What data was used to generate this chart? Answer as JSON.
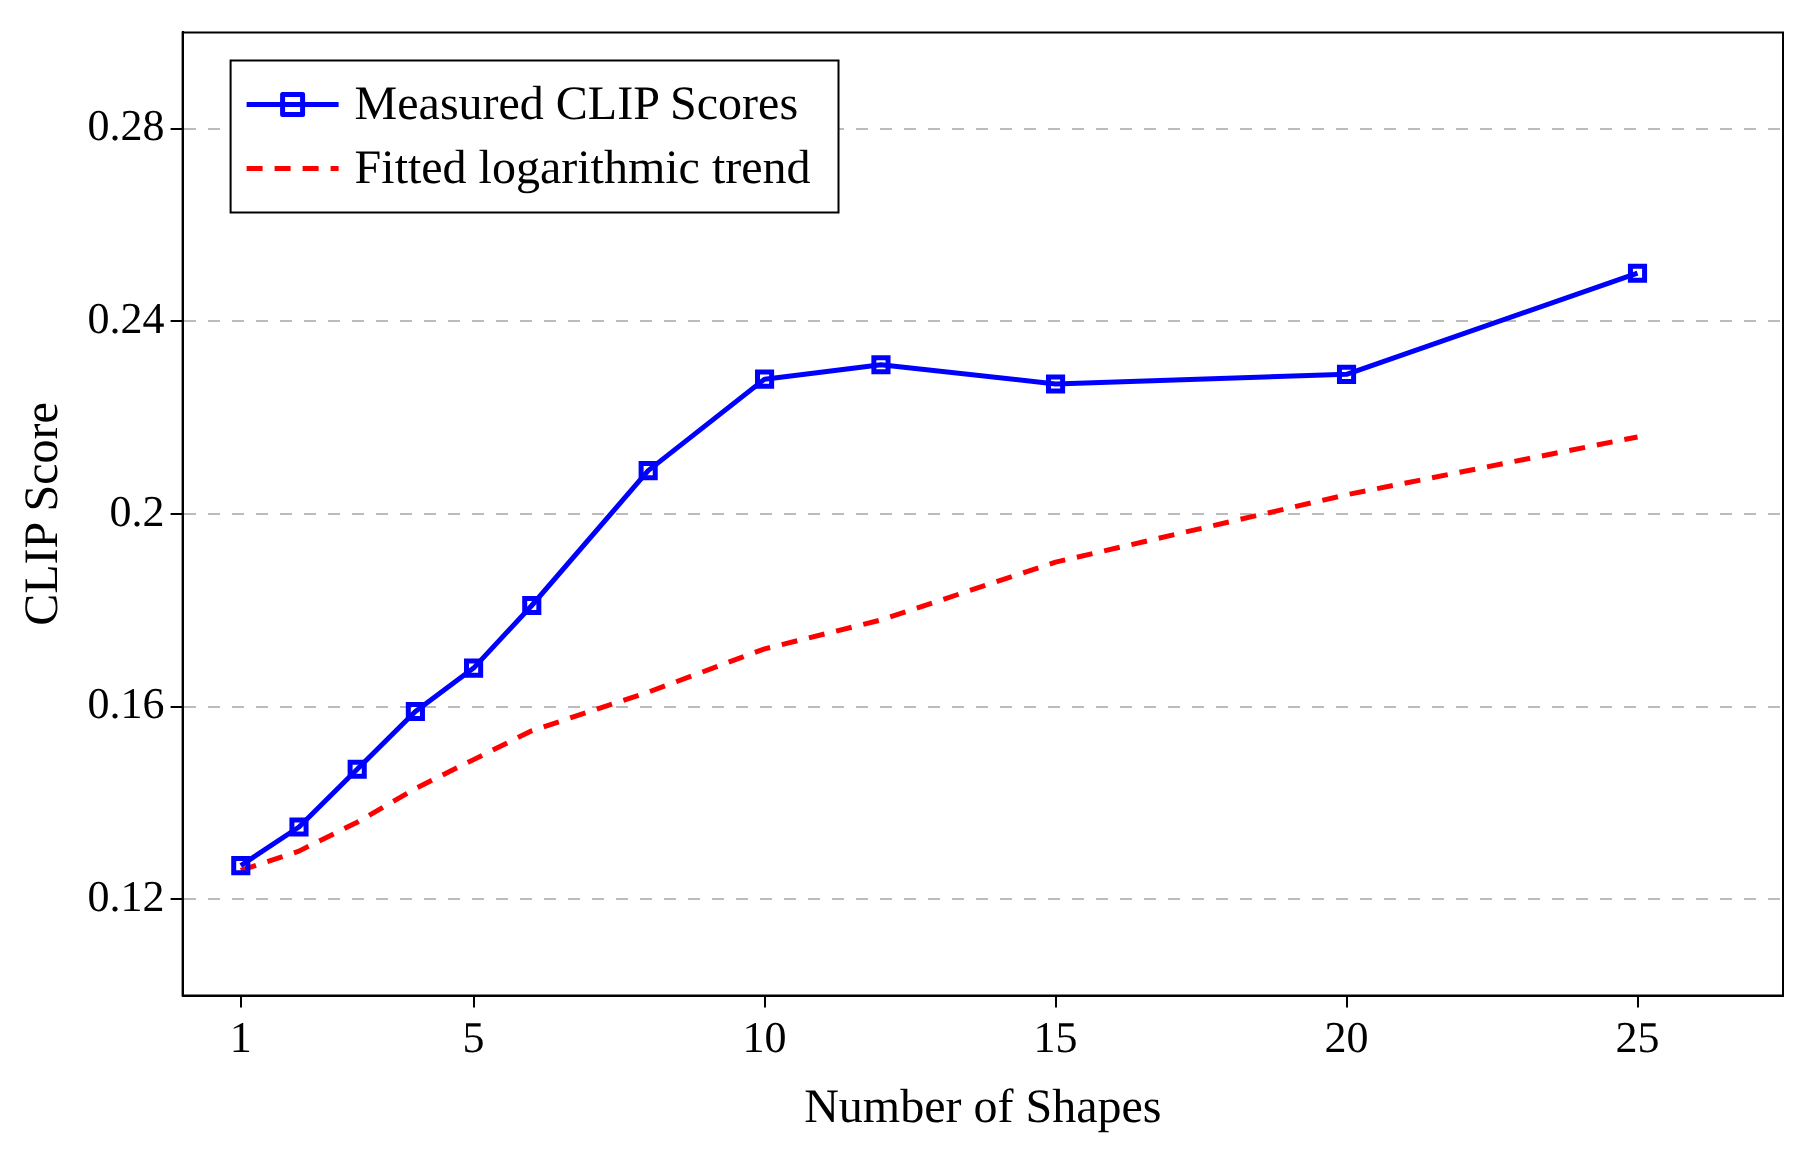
{
  "chart_data": {
    "type": "line",
    "xlabel": "Number of Shapes",
    "ylabel": "CLIP Score",
    "xlim": [
      0,
      27.5
    ],
    "xticks": [
      1,
      5,
      10,
      15,
      20,
      25
    ],
    "ylim": [
      0.1,
      0.3
    ],
    "yticks": [
      0.12,
      0.16,
      0.2,
      0.24,
      0.28
    ],
    "grid": "y",
    "legend": "top left",
    "series": [
      {
        "name": "Measured CLIP Scores",
        "color": "#0000ff",
        "marker": "square",
        "line_style": "solid",
        "x": [
          1,
          2,
          3,
          4,
          5,
          6,
          8,
          10,
          12,
          15,
          20,
          25
        ],
        "values": [
          0.127,
          0.135,
          0.147,
          0.159,
          0.168,
          0.181,
          0.209,
          0.228,
          0.231,
          0.227,
          0.229,
          0.25
        ]
      },
      {
        "name": "Fitted logarithmic trend",
        "type": "line",
        "color": "#ff0000",
        "marker": "none",
        "line_style": "dashed",
        "x": [
          1,
          2,
          3,
          4,
          5,
          6,
          8,
          10,
          12,
          15,
          20,
          25
        ],
        "values": [
          0.126,
          0.13,
          0.136,
          0.143,
          0.149,
          0.155,
          0.163,
          0.172,
          0.178,
          0.19,
          0.204,
          0.216
        ]
      }
    ]
  }
}
